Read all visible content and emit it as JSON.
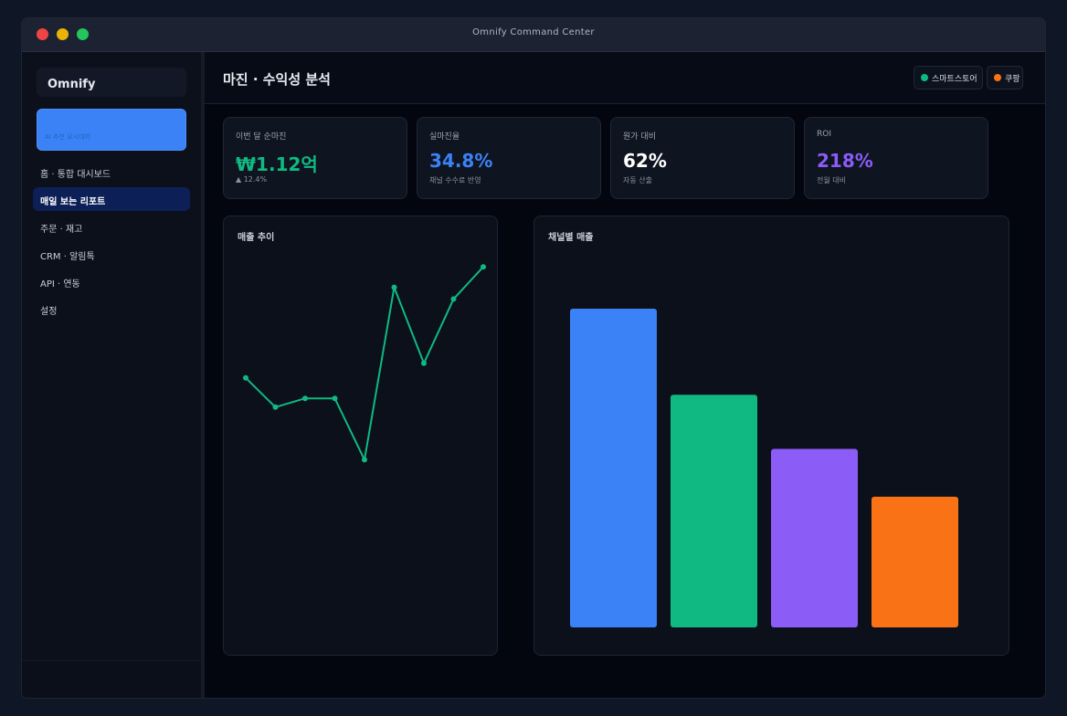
{
  "window": {
    "title": "Omnify Command Center"
  },
  "sidebar": {
    "brand": "Omnify",
    "banner_text": "AI 추천 요시대어",
    "items": [
      {
        "label": "홈 · 통합 대시보드",
        "active": false
      },
      {
        "label": "매일 보는 리포트",
        "active": true
      },
      {
        "label": "주문 · 재고",
        "active": false
      },
      {
        "label": "CRM · 알림톡",
        "active": false
      },
      {
        "label": "API · 연동",
        "active": false
      },
      {
        "label": "설정",
        "active": false
      }
    ]
  },
  "header": {
    "title": "마진 · 수익성 분석",
    "chips": [
      {
        "label": "스마트스토어",
        "color": "#10b981"
      },
      {
        "label": "쿠팡",
        "color": "#f97316"
      }
    ]
  },
  "kpis": [
    {
      "label": "이번 달 순마진",
      "value": "₩1.12억",
      "sub": "▲ 12.4%",
      "color": "#10b981"
    },
    {
      "label": "실마진율",
      "value": "34.8%",
      "sub": "채널 수수료 반영",
      "color": "#3b82f6"
    },
    {
      "label": "원가 대비",
      "value": "62%",
      "sub": "자동 산출",
      "color": "#ffffff"
    },
    {
      "label": "ROI",
      "value": "218%",
      "sub": "전월 대비",
      "color": "#8b5cf6"
    }
  ],
  "panels": {
    "trend_title": "매출 추이",
    "channel_title": "채널별 매출"
  },
  "chart_data": [
    {
      "type": "line",
      "title": "매출 추이",
      "x": [
        1,
        2,
        3,
        4,
        5,
        6,
        7,
        8,
        9
      ],
      "series": [
        {
          "values": [
            51,
            41,
            44,
            44,
            23,
            82,
            56,
            78,
            89
          ],
          "color": "#10b981"
        }
      ],
      "ylim": [
        0,
        100
      ],
      "grid": false
    },
    {
      "type": "bar",
      "title": "채널별 매출",
      "categories": [
        "",
        "",
        "",
        ""
      ],
      "values": [
        100,
        73,
        56,
        41
      ],
      "colors": [
        "#3b82f6",
        "#10b981",
        "#8b5cf6",
        "#f97316"
      ],
      "ylim": [
        0,
        100
      ],
      "grid": false
    }
  ]
}
